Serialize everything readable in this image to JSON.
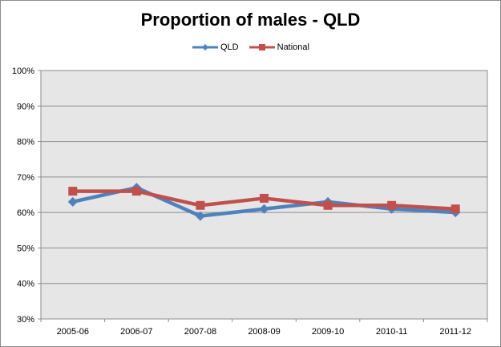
{
  "chart_data": {
    "type": "line",
    "title": "Proportion of males - QLD",
    "categories": [
      "2005-06",
      "2006-07",
      "2007-08",
      "2008-09",
      "2009-10",
      "2010-11",
      "2011-12"
    ],
    "series": [
      {
        "name": "QLD",
        "values": [
          63,
          67,
          59,
          61,
          63,
          61,
          60
        ],
        "color": "#4f81bd",
        "marker": "diamond"
      },
      {
        "name": "National",
        "values": [
          66,
          66,
          62,
          64,
          62,
          62,
          61
        ],
        "color": "#c0504d",
        "marker": "square"
      }
    ],
    "ylim": [
      30,
      100
    ],
    "yticks": [
      "30%",
      "40%",
      "50%",
      "60%",
      "70%",
      "80%",
      "90%",
      "100%"
    ],
    "grid": true,
    "legend_position": "top",
    "plot_background": "#e6e6e6"
  }
}
